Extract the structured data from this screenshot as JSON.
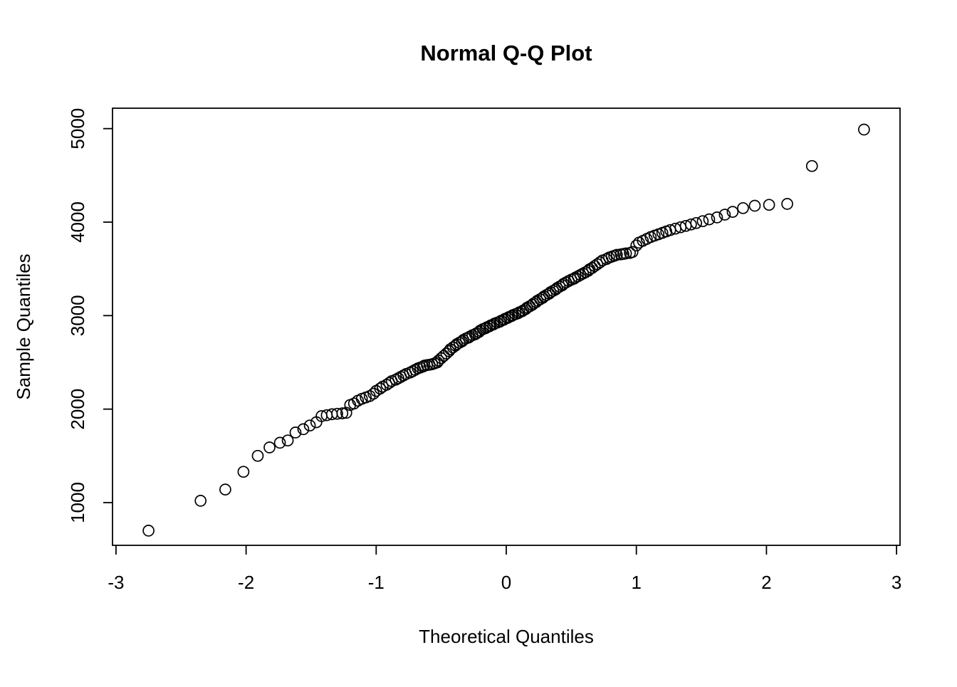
{
  "chart_data": {
    "type": "scatter",
    "title": "Normal Q-Q Plot",
    "xlabel": "Theoretical Quantiles",
    "ylabel": "Sample Quantiles",
    "xlim": [
      -3,
      3
    ],
    "ylim": [
      700,
      5000
    ],
    "x_ticks": [
      -3,
      -2,
      -1,
      0,
      1,
      2,
      3
    ],
    "y_ticks": [
      1000,
      2000,
      3000,
      4000,
      5000
    ],
    "grid": false,
    "legend": "none",
    "marker": "open-circle",
    "marker_color": "#000000",
    "background_color": "#ffffff",
    "n_points": 160,
    "x": [
      -2.75,
      -2.35,
      -2.16,
      -2.02,
      -1.91,
      -1.82,
      -1.74,
      -1.68,
      -1.62,
      -1.56,
      -1.51,
      -1.46,
      -1.42,
      -1.38,
      -1.34,
      -1.3,
      -1.26,
      -1.23,
      -1.2,
      -1.17,
      -1.14,
      -1.11,
      -1.08,
      -1.05,
      -1.02,
      -1.0,
      -0.97,
      -0.95,
      -0.92,
      -0.9,
      -0.88,
      -0.85,
      -0.83,
      -0.81,
      -0.79,
      -0.77,
      -0.74,
      -0.72,
      -0.7,
      -0.68,
      -0.66,
      -0.64,
      -0.63,
      -0.61,
      -0.59,
      -0.57,
      -0.55,
      -0.53,
      -0.52,
      -0.5,
      -0.48,
      -0.46,
      -0.44,
      -0.43,
      -0.41,
      -0.39,
      -0.38,
      -0.36,
      -0.34,
      -0.33,
      -0.31,
      -0.29,
      -0.28,
      -0.26,
      -0.24,
      -0.23,
      -0.21,
      -0.2,
      -0.18,
      -0.16,
      -0.15,
      -0.13,
      -0.12,
      -0.1,
      -0.09,
      -0.07,
      -0.05,
      -0.04,
      -0.02,
      -0.01,
      0.01,
      0.02,
      0.04,
      0.05,
      0.07,
      0.09,
      0.1,
      0.12,
      0.13,
      0.15,
      0.16,
      0.18,
      0.2,
      0.21,
      0.23,
      0.24,
      0.26,
      0.28,
      0.29,
      0.31,
      0.33,
      0.34,
      0.36,
      0.38,
      0.39,
      0.41,
      0.43,
      0.44,
      0.46,
      0.48,
      0.5,
      0.52,
      0.53,
      0.55,
      0.57,
      0.59,
      0.61,
      0.63,
      0.64,
      0.66,
      0.68,
      0.7,
      0.72,
      0.74,
      0.77,
      0.79,
      0.81,
      0.83,
      0.85,
      0.88,
      0.9,
      0.92,
      0.95,
      0.97,
      1.0,
      1.02,
      1.05,
      1.08,
      1.11,
      1.14,
      1.17,
      1.2,
      1.23,
      1.26,
      1.3,
      1.34,
      1.38,
      1.42,
      1.46,
      1.51,
      1.56,
      1.62,
      1.68,
      1.74,
      1.82,
      1.91,
      2.02,
      2.16,
      2.35,
      2.75
    ],
    "y": [
      700,
      1020,
      1140,
      1330,
      1500,
      1590,
      1640,
      1665,
      1750,
      1785,
      1825,
      1860,
      1925,
      1935,
      1945,
      1950,
      1955,
      1960,
      2045,
      2060,
      2090,
      2110,
      2125,
      2140,
      2165,
      2195,
      2220,
      2240,
      2260,
      2280,
      2300,
      2315,
      2330,
      2345,
      2360,
      2375,
      2390,
      2405,
      2420,
      2435,
      2445,
      2455,
      2465,
      2470,
      2475,
      2480,
      2490,
      2500,
      2520,
      2545,
      2570,
      2595,
      2620,
      2640,
      2660,
      2680,
      2695,
      2710,
      2725,
      2740,
      2755,
      2765,
      2775,
      2790,
      2800,
      2810,
      2825,
      2840,
      2855,
      2865,
      2875,
      2885,
      2895,
      2905,
      2915,
      2925,
      2935,
      2945,
      2955,
      2965,
      2975,
      2985,
      2995,
      3005,
      3015,
      3025,
      3035,
      3045,
      3055,
      3070,
      3085,
      3100,
      3115,
      3130,
      3145,
      3160,
      3175,
      3190,
      3205,
      3220,
      3235,
      3250,
      3265,
      3280,
      3295,
      3310,
      3325,
      3340,
      3355,
      3370,
      3385,
      3395,
      3405,
      3420,
      3435,
      3450,
      3465,
      3480,
      3495,
      3510,
      3530,
      3550,
      3570,
      3590,
      3605,
      3620,
      3630,
      3640,
      3650,
      3655,
      3660,
      3665,
      3670,
      3680,
      3750,
      3780,
      3800,
      3820,
      3840,
      3855,
      3870,
      3885,
      3900,
      3915,
      3930,
      3945,
      3960,
      3975,
      3990,
      4010,
      4030,
      4050,
      4080,
      4110,
      4150,
      4175,
      4185,
      4195,
      4600,
      4990
    ]
  }
}
